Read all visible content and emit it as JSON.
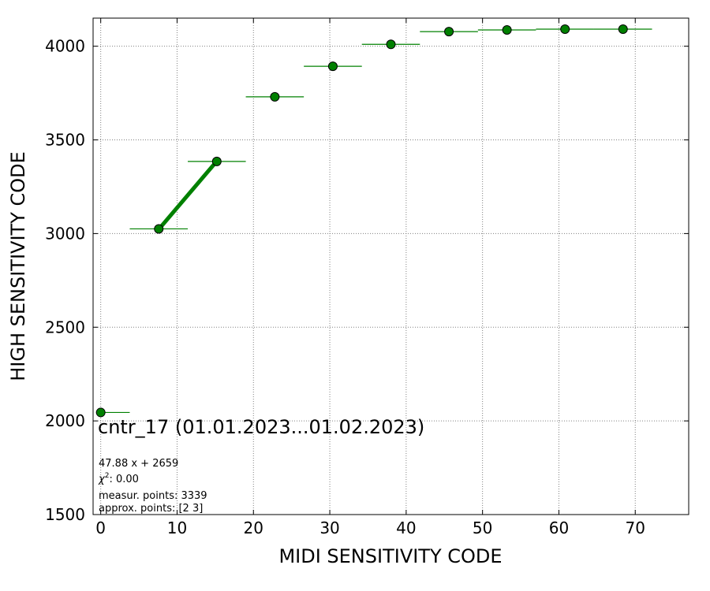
{
  "chart_data": {
    "type": "scatter",
    "xlabel": "MIDI SENSITIVITY CODE",
    "ylabel": "HIGH SENSITIVITY CODE",
    "xlim": [
      -1,
      77
    ],
    "ylim": [
      1500,
      4150
    ],
    "xticks": [
      0,
      10,
      20,
      30,
      40,
      50,
      60,
      70
    ],
    "yticks": [
      1500,
      2000,
      2500,
      3000,
      3500,
      4000
    ],
    "grid": true,
    "points": [
      {
        "x": 0.0,
        "y": 2045,
        "xerr_low": 0.0,
        "xerr_high": 3.8
      },
      {
        "x": 7.6,
        "y": 3025,
        "xerr_low": 3.8,
        "xerr_high": 3.8
      },
      {
        "x": 15.2,
        "y": 3385,
        "xerr_low": 3.8,
        "xerr_high": 3.8
      },
      {
        "x": 22.8,
        "y": 3730,
        "xerr_low": 3.8,
        "xerr_high": 3.8
      },
      {
        "x": 30.4,
        "y": 3893,
        "xerr_low": 3.8,
        "xerr_high": 3.8
      },
      {
        "x": 38.0,
        "y": 4010,
        "xerr_low": 3.8,
        "xerr_high": 3.8
      },
      {
        "x": 45.6,
        "y": 4078,
        "xerr_low": 3.8,
        "xerr_high": 3.8
      },
      {
        "x": 53.2,
        "y": 4087,
        "xerr_low": 3.8,
        "xerr_high": 3.8
      },
      {
        "x": 60.8,
        "y": 4091,
        "xerr_low": 3.8,
        "xerr_high": 3.8
      },
      {
        "x": 68.4,
        "y": 4091,
        "xerr_low": 3.8,
        "xerr_high": 3.8
      }
    ],
    "fit_line": {
      "slope": 47.88,
      "intercept": 2659,
      "x_range": [
        7.6,
        15.2
      ]
    },
    "colors": {
      "marker": "#008000",
      "marker_edge": "#000000",
      "fit": "#008000",
      "grid": "#808080"
    },
    "annotations": {
      "title": "cntr_17 (01.01.2023...01.02.2023)",
      "equation": "47.88 x + 2659",
      "chi_label": "χ",
      "chi_exp": "2",
      "chi_value": ": 0.00",
      "measur_points": "measur. points: 3339",
      "approx_points": "approx. points: [2 3]"
    }
  }
}
